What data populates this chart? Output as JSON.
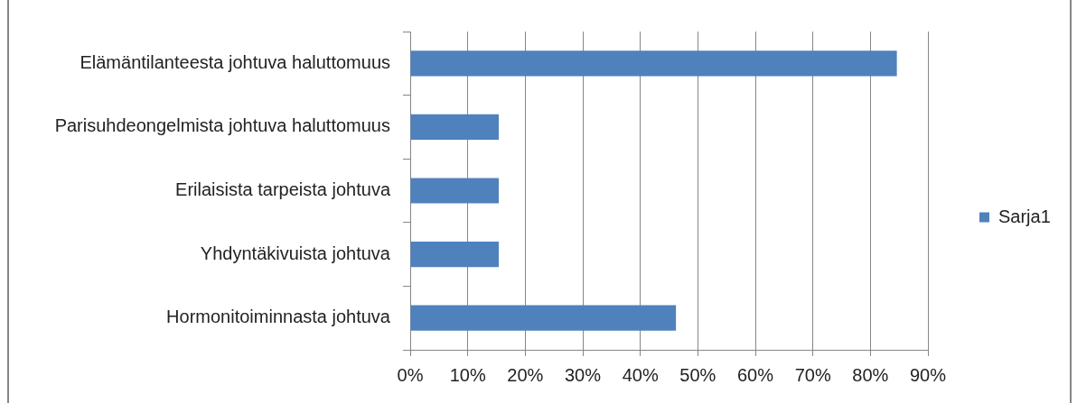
{
  "chart_data": {
    "type": "bar",
    "orientation": "horizontal",
    "categories": [
      "Elämäntilanteesta johtuva haluttomuus",
      "Parisuhdeongelmista johtuva haluttomuus",
      "Erilaisista tarpeista johtuva",
      "Yhdyntäkivuista johtuva",
      "Hormonitoiminnasta johtuva"
    ],
    "series": [
      {
        "name": "Sarja1",
        "color": "#4f81bd",
        "values": [
          84.6,
          15.4,
          15.4,
          15.4,
          46.2
        ]
      }
    ],
    "xlim": [
      0,
      90
    ],
    "xticks": [
      {
        "value": 0,
        "label": "0%"
      },
      {
        "value": 10,
        "label": "10%"
      },
      {
        "value": 20,
        "label": "20%"
      },
      {
        "value": 30,
        "label": "30%"
      },
      {
        "value": 40,
        "label": "40%"
      },
      {
        "value": 50,
        "label": "50%"
      },
      {
        "value": 60,
        "label": "60%"
      },
      {
        "value": 70,
        "label": "70%"
      },
      {
        "value": 80,
        "label": "80%"
      },
      {
        "value": 90,
        "label": "90%"
      }
    ],
    "grid": "x",
    "legend": "right"
  }
}
